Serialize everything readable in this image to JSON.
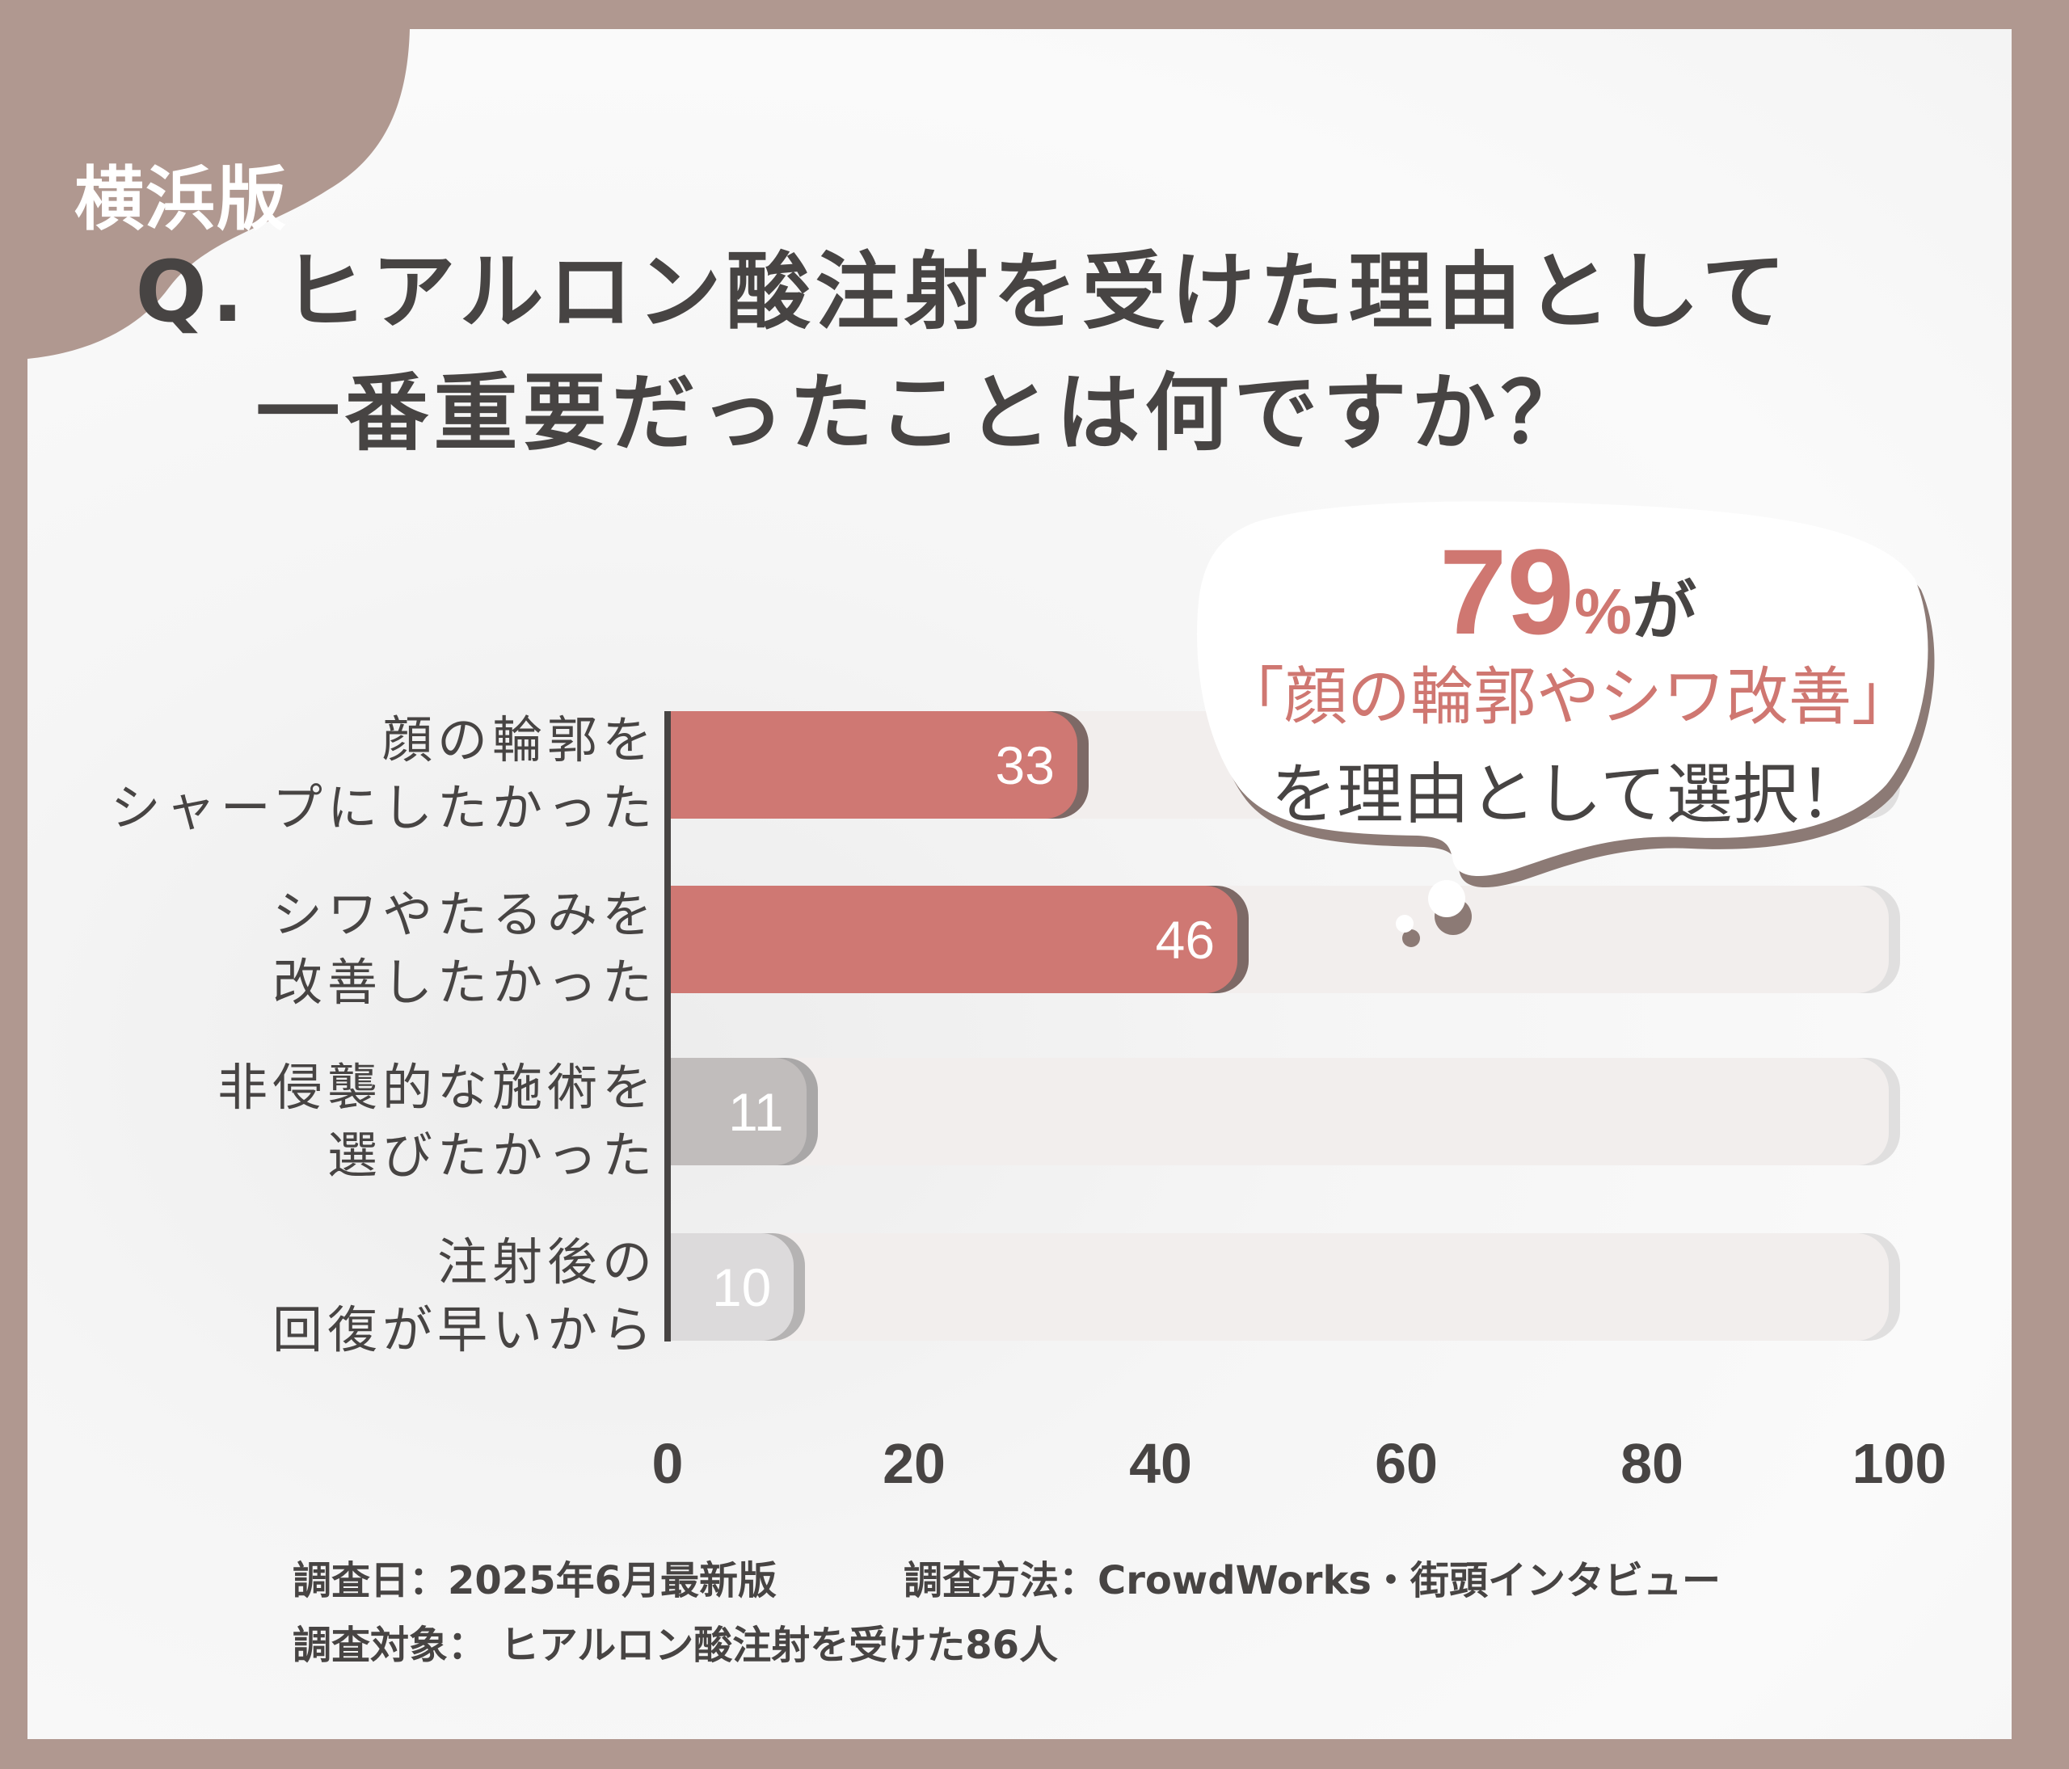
{
  "badge": {
    "edition": "横浜版"
  },
  "title": {
    "line1": "Q. ヒアルロン酸注射を受けた理由として",
    "line2": "一番重要だったことは何ですか？"
  },
  "callout": {
    "percent": "79",
    "percent_unit": "%",
    "particle": "が",
    "highlight": "「顔の輪郭やシワ改善」",
    "suffix": "を理由として選択！"
  },
  "chart_data": {
    "type": "bar",
    "orientation": "horizontal",
    "title": "Q. ヒアルロン酸注射を受けた理由として一番重要だったことは何ですか？",
    "categories": [
      "顔の輪郭をシャープにしたかった",
      "シワやたるみを改善したかった",
      "非侵襲的な施術を選びたかった",
      "注射後の回復が早いから"
    ],
    "category_lines": [
      [
        "顔の輪郭を",
        "シャープにしたかった"
      ],
      [
        "シワやたるみを",
        "改善したかった"
      ],
      [
        "非侵襲的な施術を",
        "選びたかった"
      ],
      [
        "注射後の",
        "回復が早いから"
      ]
    ],
    "values": [
      33,
      46,
      11,
      10
    ],
    "value_labels": [
      "33",
      "46",
      "11",
      "10"
    ],
    "bar_colors": [
      "#cf7873",
      "#cf7873",
      "#c1bdbc",
      "#dcdadb"
    ],
    "bar_shadow_colors": [
      "#7d6966",
      "#7d6966",
      "#a9a7a7",
      "#b5b3b3"
    ],
    "xlim": [
      0,
      100
    ],
    "xticks": [
      "0",
      "20",
      "40",
      "60",
      "80",
      "100"
    ],
    "xlabel": "",
    "ylabel": "",
    "grid": false,
    "legend": null,
    "annotation": "79%が「顔の輪郭やシワ改善」を理由として選択！"
  },
  "footer": {
    "survey_date": "調査日：2025年6月最新版",
    "survey_method": "調査方法：CrowdWorks・街頭インタビュー",
    "survey_target": "調査対象： ヒアルロン酸注射を受けた86人"
  },
  "colors": {
    "frame": "#b09890",
    "accent": "#cf7873",
    "text": "#474443",
    "track": "#f2eeed",
    "bubble_shadow": "#8c7a75"
  }
}
